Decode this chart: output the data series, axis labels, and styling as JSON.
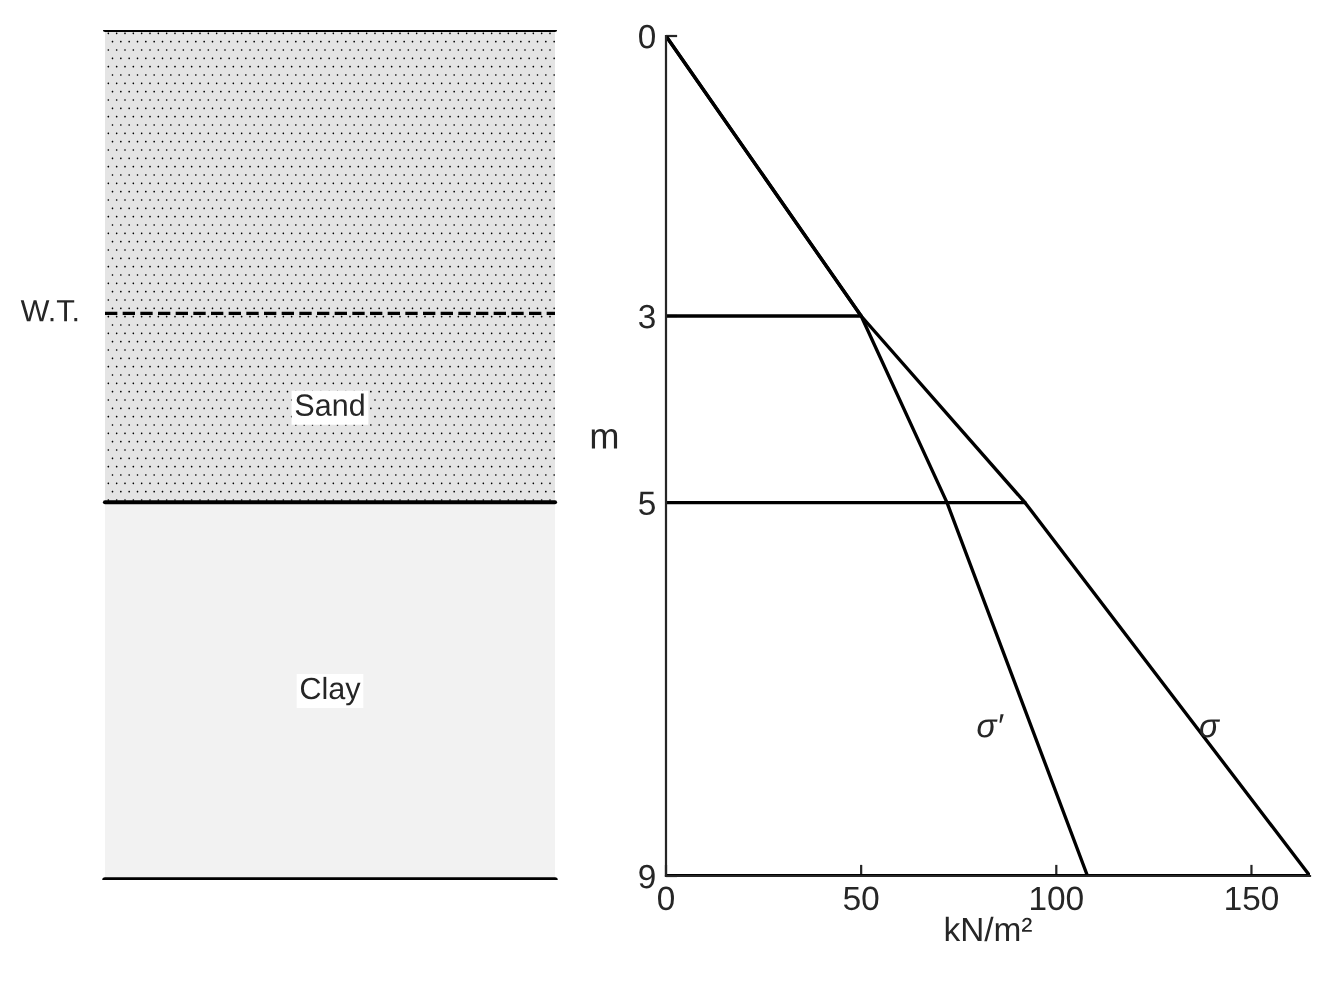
{
  "chart_data": [
    {
      "type": "other",
      "annotations": [
        "W.T.",
        "Sand",
        "Clay"
      ]
    },
    {
      "type": "line",
      "xlabel": "kN/m²",
      "ylabel": "m",
      "xlim": [
        0,
        165
      ],
      "ylim": [
        9,
        0
      ],
      "xticks": [
        0,
        50,
        100,
        150
      ],
      "yticks": [
        0,
        3,
        5,
        9
      ],
      "grid": false,
      "legend": false,
      "marker": "none",
      "line_style": "solid",
      "series": [
        {
          "name": "σ",
          "color": "#000000",
          "x": [
            0,
            50,
            92,
            165
          ],
          "values": [
            0,
            3,
            5,
            9
          ]
        },
        {
          "name": "σ′",
          "color": "#000000",
          "x": [
            0,
            50,
            72,
            108
          ],
          "values": [
            0,
            3,
            5,
            9
          ]
        },
        {
          "color": "#000000",
          "x": [
            0,
            50
          ],
          "values": [
            3,
            3
          ]
        },
        {
          "color": "#000000",
          "x": [
            0,
            92
          ],
          "values": [
            5,
            5
          ]
        }
      ],
      "ref_lines": [
        {
          "axis": "y",
          "value": 9,
          "color": "#000000"
        }
      ]
    }
  ]
}
